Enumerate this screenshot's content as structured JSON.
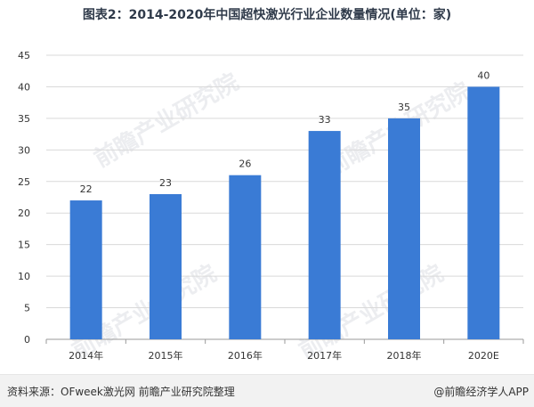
{
  "title": "图表2：2014-2020年中国超快激光行业企业数量情况(单位：家)",
  "source": "资料来源：OFweek激光网 前瞻产业研究院整理",
  "brand": "@前瞻经济学人APP",
  "watermark": "前瞻产业研究院",
  "colors": {
    "bar": "#3a7bd5",
    "grid": "#d9d9d9",
    "axis": "#9a9a9a",
    "text": "#333333"
  },
  "chart_data": {
    "type": "bar",
    "title": "图表2：2014-2020年中国超快激光行业企业数量情况(单位：家)",
    "categories": [
      "2014年",
      "2015年",
      "2016年",
      "2017年",
      "2018年",
      "2020E"
    ],
    "values": [
      22,
      23,
      26,
      33,
      35,
      40
    ],
    "data_labels": [
      "22",
      "23",
      "26",
      "33",
      "35",
      "40"
    ],
    "ylim": [
      0,
      45
    ],
    "yticks": [
      0,
      5,
      10,
      15,
      20,
      25,
      30,
      35,
      40,
      45
    ],
    "ytick_labels": [
      "0",
      "5",
      "10",
      "15",
      "20",
      "25",
      "30",
      "35",
      "40",
      "45"
    ],
    "grid": true,
    "legend": "none"
  }
}
